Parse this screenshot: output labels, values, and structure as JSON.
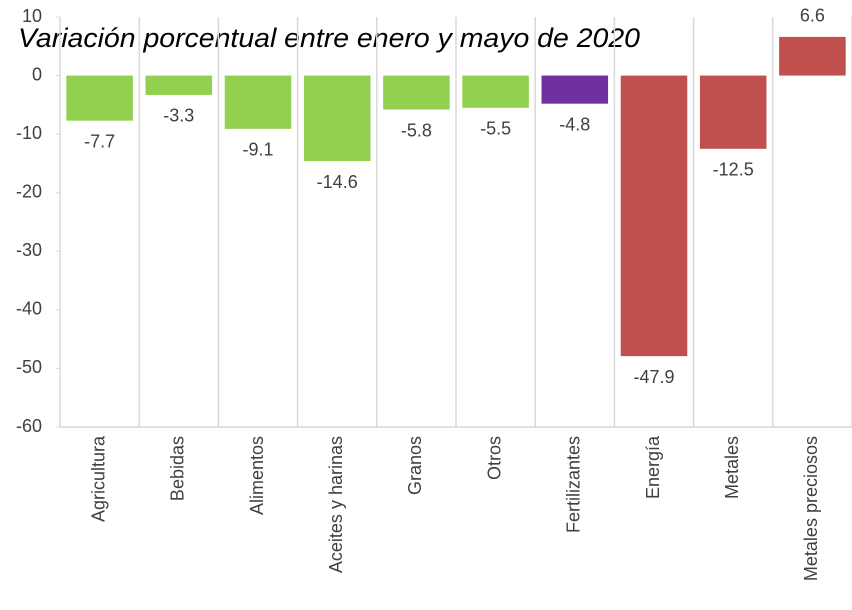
{
  "chart_data": {
    "type": "bar",
    "title": "Variación porcentual entre enero y mayo de 2020",
    "categories": [
      "Agricultura",
      "Bebidas",
      "Alimentos",
      "Aceites y harinas",
      "Granos",
      "Otros",
      "Fertilizantes",
      "Energía",
      "Metales",
      "Metales preciosos"
    ],
    "values": [
      -7.7,
      -3.3,
      -9.1,
      -14.6,
      -5.8,
      -5.5,
      -4.8,
      -47.9,
      -12.5,
      6.6
    ],
    "colors": [
      "#92d050",
      "#92d050",
      "#92d050",
      "#92d050",
      "#92d050",
      "#92d050",
      "#7030a0",
      "#c0504d",
      "#c0504d",
      "#c0504d"
    ],
    "ylim": [
      -60,
      10
    ],
    "yticks": [
      -60,
      -50,
      -40,
      -30,
      -20,
      -10,
      0,
      10
    ]
  }
}
